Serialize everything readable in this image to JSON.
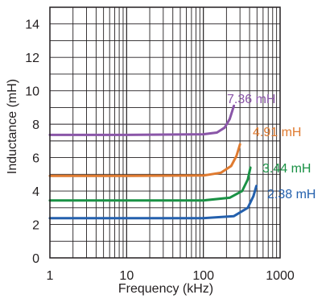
{
  "chart_data": {
    "type": "line",
    "title": "",
    "xlabel": "Frequency (kHz)",
    "ylabel": "Inductance (mH)",
    "xscale": "log",
    "xlim": [
      1,
      1000
    ],
    "ylim": [
      0,
      15
    ],
    "x_ticks": [
      "1",
      "10",
      "100",
      "1000"
    ],
    "y_ticks": [
      "0",
      "2",
      "4",
      "6",
      "8",
      "10",
      "12",
      "14"
    ],
    "grid": true,
    "series": [
      {
        "name": "7.36 mH",
        "color": "#8a56a8",
        "points": [
          [
            1,
            7.36
          ],
          [
            10,
            7.36
          ],
          [
            100,
            7.4
          ],
          [
            150,
            7.5
          ],
          [
            190,
            7.8
          ],
          [
            220,
            8.3
          ],
          [
            250,
            9.1
          ]
        ]
      },
      {
        "name": "4.91 mH",
        "color": "#e07b30",
        "points": [
          [
            1,
            4.91
          ],
          [
            10,
            4.91
          ],
          [
            100,
            4.93
          ],
          [
            170,
            5.1
          ],
          [
            230,
            5.5
          ],
          [
            270,
            6.1
          ],
          [
            300,
            6.8
          ]
        ]
      },
      {
        "name": "3.44 mH",
        "color": "#1a9145",
        "points": [
          [
            1,
            3.44
          ],
          [
            10,
            3.44
          ],
          [
            100,
            3.44
          ],
          [
            220,
            3.6
          ],
          [
            320,
            4.0
          ],
          [
            380,
            4.7
          ],
          [
            410,
            5.4
          ]
        ]
      },
      {
        "name": "2.38 mH",
        "color": "#2460ad",
        "points": [
          [
            1,
            2.38
          ],
          [
            10,
            2.38
          ],
          [
            100,
            2.38
          ],
          [
            250,
            2.5
          ],
          [
            380,
            3.0
          ],
          [
            450,
            3.7
          ],
          [
            490,
            4.3
          ]
        ]
      }
    ]
  }
}
